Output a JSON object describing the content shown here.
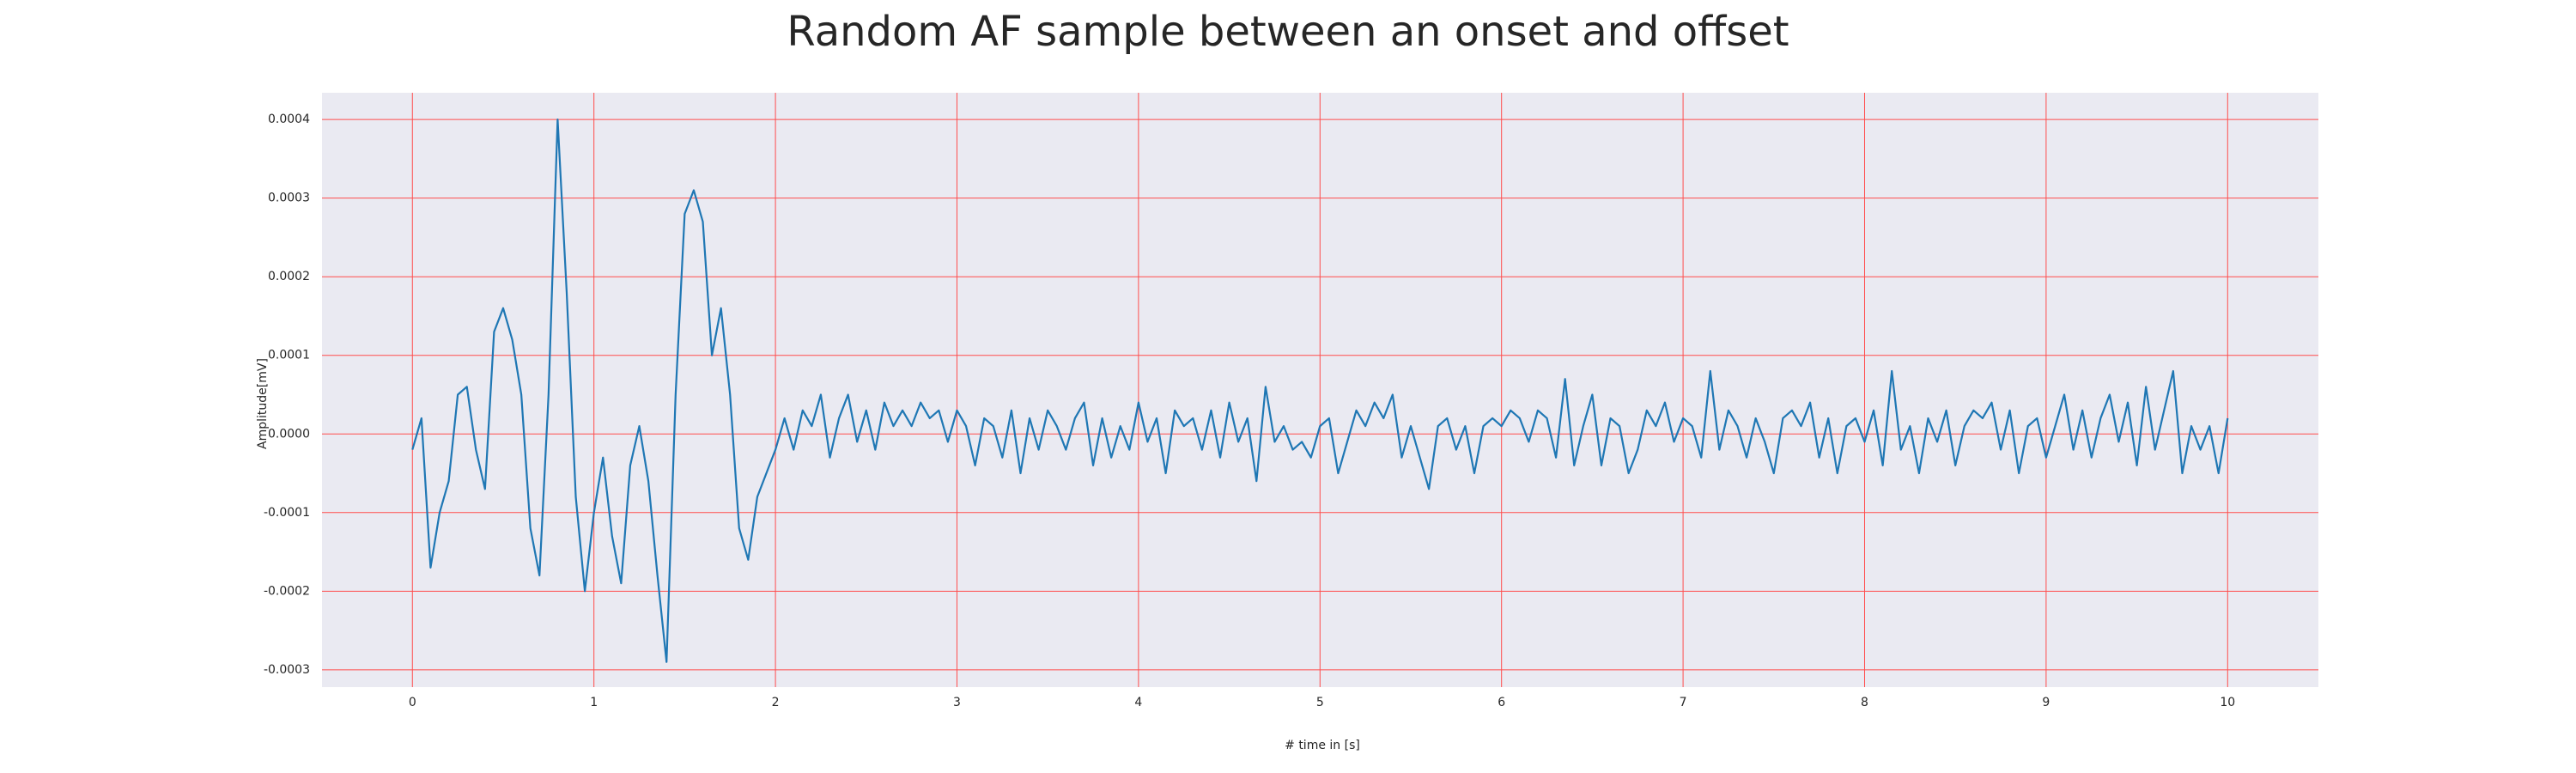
{
  "chart_data": {
    "type": "line",
    "title": "Random AF sample between an onset and offset",
    "x_label": "# time in [s]",
    "y_label": "Amplitude[mV]",
    "x": [
      0,
      0.05,
      0.1,
      0.15,
      0.2,
      0.25,
      0.3,
      0.35,
      0.4,
      0.45,
      0.5,
      0.55,
      0.6,
      0.65,
      0.7,
      0.75,
      0.8,
      0.85,
      0.9,
      0.95,
      1,
      1.05,
      1.1,
      1.15,
      1.2,
      1.25,
      1.3,
      1.35,
      1.4,
      1.45,
      1.5,
      1.55,
      1.6,
      1.65,
      1.7,
      1.75,
      1.8,
      1.85,
      1.9,
      1.95,
      2,
      2.05,
      2.1,
      2.15,
      2.2,
      2.25,
      2.3,
      2.35,
      2.4,
      2.45,
      2.5,
      2.55,
      2.6,
      2.65,
      2.7,
      2.75,
      2.8,
      2.85,
      2.9,
      2.95,
      3,
      3.05,
      3.1,
      3.15,
      3.2,
      3.25,
      3.3,
      3.35,
      3.4,
      3.45,
      3.5,
      3.55,
      3.6,
      3.65,
      3.7,
      3.75,
      3.8,
      3.85,
      3.9,
      3.95,
      4,
      4.05,
      4.1,
      4.15,
      4.2,
      4.25,
      4.3,
      4.35,
      4.4,
      4.45,
      4.5,
      4.55,
      4.6,
      4.65,
      4.7,
      4.75,
      4.8,
      4.85,
      4.9,
      4.95,
      5,
      5.05,
      5.1,
      5.15,
      5.2,
      5.25,
      5.3,
      5.35,
      5.4,
      5.45,
      5.5,
      5.55,
      5.6,
      5.65,
      5.7,
      5.75,
      5.8,
      5.85,
      5.9,
      5.95,
      6,
      6.05,
      6.1,
      6.15,
      6.2,
      6.25,
      6.3,
      6.35,
      6.4,
      6.45,
      6.5,
      6.55,
      6.6,
      6.65,
      6.7,
      6.75,
      6.8,
      6.85,
      6.9,
      6.95,
      7,
      7.05,
      7.1,
      7.15,
      7.2,
      7.25,
      7.3,
      7.35,
      7.4,
      7.45,
      7.5,
      7.55,
      7.6,
      7.65,
      7.7,
      7.75,
      7.8,
      7.85,
      7.9,
      7.95,
      8,
      8.05,
      8.1,
      8.15,
      8.2,
      8.25,
      8.3,
      8.35,
      8.4,
      8.45,
      8.5,
      8.55,
      8.6,
      8.65,
      8.7,
      8.75,
      8.8,
      8.85,
      8.9,
      8.95,
      9,
      9.05,
      9.1,
      9.15,
      9.2,
      9.25,
      9.3,
      9.35,
      9.4,
      9.45,
      9.5,
      9.55,
      9.6,
      9.65,
      9.7,
      9.75,
      9.8,
      9.85,
      9.9,
      9.95,
      10
    ],
    "series": [
      {
        "name": "Amplitude",
        "color": "#1f77b4",
        "values": [
          -2e-05,
          2e-05,
          -0.00017,
          -0.0001,
          -6e-05,
          5e-05,
          6e-05,
          -2e-05,
          -7e-05,
          0.00013,
          0.00016,
          0.00012,
          5e-05,
          -0.00012,
          -0.00018,
          5e-05,
          0.0004,
          0.00018,
          -8e-05,
          -0.0002,
          -0.0001,
          -3e-05,
          -0.00013,
          -0.00019,
          -4e-05,
          1e-05,
          -6e-05,
          -0.00018,
          -0.00029,
          5e-05,
          0.00028,
          0.00031,
          0.00027,
          0.0001,
          0.00016,
          5e-05,
          -0.00012,
          -0.00016,
          -8e-05,
          -5e-05,
          -2e-05,
          2e-05,
          -2e-05,
          3e-05,
          1e-05,
          5e-05,
          -3e-05,
          2e-05,
          5e-05,
          -1e-05,
          3e-05,
          -2e-05,
          4e-05,
          1e-05,
          3e-05,
          1e-05,
          4e-05,
          2e-05,
          3e-05,
          -1e-05,
          3e-05,
          1e-05,
          -4e-05,
          2e-05,
          1e-05,
          -3e-05,
          3e-05,
          -5e-05,
          2e-05,
          -2e-05,
          3e-05,
          1e-05,
          -2e-05,
          2e-05,
          4e-05,
          -4e-05,
          2e-05,
          -3e-05,
          1e-05,
          -2e-05,
          4e-05,
          -1e-05,
          2e-05,
          -5e-05,
          3e-05,
          1e-05,
          2e-05,
          -2e-05,
          3e-05,
          -3e-05,
          4e-05,
          -1e-05,
          2e-05,
          -6e-05,
          6e-05,
          -1e-05,
          1e-05,
          -2e-05,
          -1e-05,
          -3e-05,
          1e-05,
          2e-05,
          -5e-05,
          -1e-05,
          3e-05,
          1e-05,
          4e-05,
          2e-05,
          5e-05,
          -3e-05,
          1e-05,
          -3e-05,
          -7e-05,
          1e-05,
          2e-05,
          -2e-05,
          1e-05,
          -5e-05,
          1e-05,
          2e-05,
          1e-05,
          3e-05,
          2e-05,
          -1e-05,
          3e-05,
          2e-05,
          -3e-05,
          7e-05,
          -4e-05,
          1e-05,
          5e-05,
          -4e-05,
          2e-05,
          1e-05,
          -5e-05,
          -2e-05,
          3e-05,
          1e-05,
          4e-05,
          -1e-05,
          2e-05,
          1e-05,
          -3e-05,
          8e-05,
          -2e-05,
          3e-05,
          1e-05,
          -3e-05,
          2e-05,
          -1e-05,
          -5e-05,
          2e-05,
          3e-05,
          1e-05,
          4e-05,
          -3e-05,
          2e-05,
          -5e-05,
          1e-05,
          2e-05,
          -1e-05,
          3e-05,
          -4e-05,
          8e-05,
          -2e-05,
          1e-05,
          -5e-05,
          2e-05,
          -1e-05,
          3e-05,
          -4e-05,
          1e-05,
          3e-05,
          2e-05,
          4e-05,
          -2e-05,
          3e-05,
          -5e-05,
          1e-05,
          2e-05,
          -3e-05,
          1e-05,
          5e-05,
          -2e-05,
          3e-05,
          -3e-05,
          2e-05,
          5e-05,
          -1e-05,
          4e-05,
          -4e-05,
          6e-05,
          -2e-05,
          3e-05,
          8e-05,
          -5e-05,
          1e-05,
          -2e-05,
          1e-05,
          -5e-05,
          2e-05
        ]
      }
    ],
    "xlim": [
      -0.498,
      10.5
    ],
    "ylim": [
      -0.000322,
      0.000434
    ],
    "xticks": [
      0,
      1,
      2,
      3,
      4,
      5,
      6,
      7,
      8,
      9,
      10
    ],
    "yticks": [
      -0.0003,
      -0.0002,
      -0.0001,
      {
        "value": 0,
        "label": "0.0000"
      },
      0.0001,
      0.0002,
      0.0003,
      0.0004
    ],
    "grid": true,
    "grid_color": "#ff4d4d",
    "background": "#eaeaf2"
  }
}
